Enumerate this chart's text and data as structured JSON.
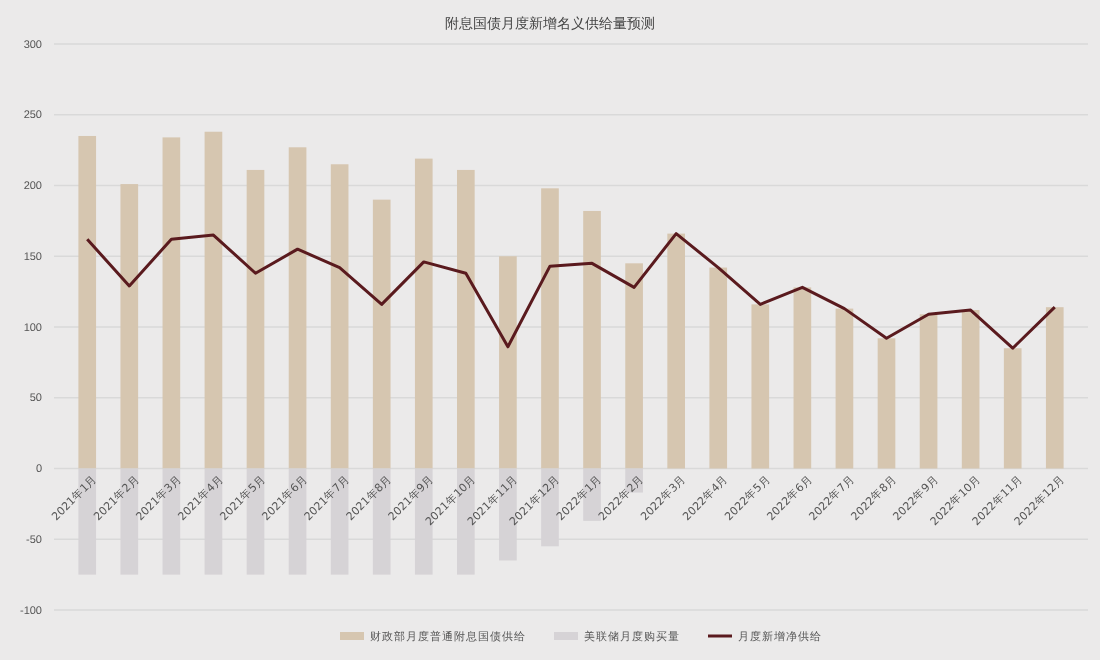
{
  "chart_data": {
    "type": "bar",
    "title": "附息国债月度新增名义供给量预测",
    "stacked": true,
    "categories": [
      "2021年1月",
      "2021年2月",
      "2021年3月",
      "2021年4月",
      "2021年5月",
      "2021年6月",
      "2021年7月",
      "2021年8月",
      "2021年9月",
      "2021年10月",
      "2021年11月",
      "2021年12月",
      "2022年1月",
      "2022年2月",
      "2022年3月",
      "2022年4月",
      "2022年5月",
      "2022年6月",
      "2022年7月",
      "2022年8月",
      "2022年9月",
      "2022年10月",
      "2022年11月",
      "2022年12月"
    ],
    "series": [
      {
        "name": "财政部月度普通附息国债供给",
        "color": "#d6c6b0",
        "values": [
          235,
          201,
          234,
          238,
          211,
          227,
          215,
          190,
          219,
          211,
          150,
          198,
          182,
          145,
          166,
          142,
          116,
          128,
          113,
          92,
          109,
          112,
          85,
          114
        ]
      },
      {
        "name": "美联储月度购买量",
        "color": "#d6d3d6",
        "values": [
          -75,
          -75,
          -75,
          -75,
          -75,
          -75,
          -75,
          -75,
          -75,
          -75,
          -65,
          -55,
          -37,
          -17,
          0,
          0,
          0,
          0,
          0,
          0,
          0,
          0,
          0,
          0
        ]
      },
      {
        "name": "月度新增净供给",
        "type": "line",
        "color": "#5a1a1e",
        "values": [
          162,
          129,
          162,
          165,
          138,
          155,
          142,
          116,
          146,
          138,
          86,
          143,
          145,
          128,
          166,
          142,
          116,
          128,
          113,
          92,
          109,
          112,
          85,
          114
        ]
      }
    ],
    "ylim": [
      -100,
      300
    ],
    "yticks": [
      -100,
      -50,
      0,
      50,
      100,
      150,
      200,
      250,
      300
    ],
    "grid": "y",
    "legend": "bottom",
    "marker": "none",
    "line_style": "solid"
  }
}
